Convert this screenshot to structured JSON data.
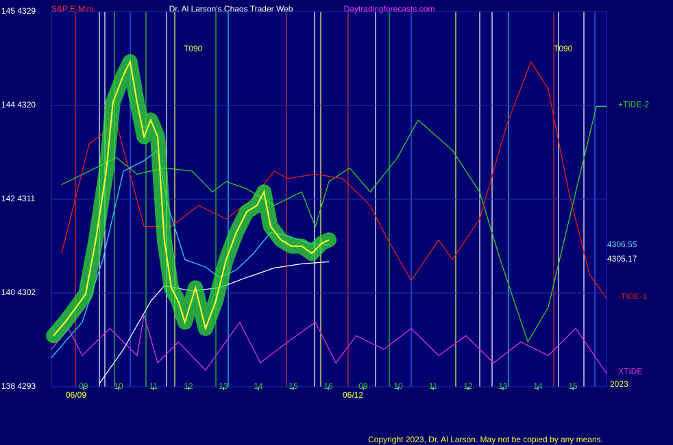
{
  "chart_data": {
    "type": "line",
    "symbol": "S&P E-Mini",
    "title": "Dr. Al Larson's Chaos Trader Web",
    "site": "Daytradingforecasts.com",
    "copyright": "Copyright 2023, Dr. Al Larson. May not be copied by any means.",
    "dates": [
      "06/09",
      "06/12",
      "2023"
    ],
    "annotations": [
      "T090",
      "T090"
    ],
    "price_labels": [
      "4306.55",
      "4305.17"
    ],
    "ylim": [
      4293,
      4329
    ],
    "yticks": [
      {
        "value": 4329,
        "label": "145 4329"
      },
      {
        "value": 4320,
        "label": "144 4320"
      },
      {
        "value": 4311,
        "label": "142 4311"
      },
      {
        "value": 4302,
        "label": "140 4302"
      },
      {
        "value": 4293,
        "label": "138 4293"
      }
    ],
    "xlim": [
      -0.92,
      14.96
    ],
    "xticks": [
      {
        "value": 0,
        "label": "09"
      },
      {
        "value": 1,
        "label": "10"
      },
      {
        "value": 2,
        "label": "11"
      },
      {
        "value": 3,
        "label": "12"
      },
      {
        "value": 4,
        "label": "13"
      },
      {
        "value": 5,
        "label": "14"
      },
      {
        "value": 6,
        "label": "15"
      },
      {
        "value": 7,
        "label": "16"
      },
      {
        "value": 8,
        "label": "09"
      },
      {
        "value": 9,
        "label": "10"
      },
      {
        "value": 10,
        "label": "11"
      },
      {
        "value": 11,
        "label": "12"
      },
      {
        "value": 12,
        "label": "13"
      },
      {
        "value": 13,
        "label": "14"
      },
      {
        "value": 14,
        "label": "15"
      }
    ],
    "grid": true,
    "series": [
      {
        "name": "+TIDE-2",
        "color": "#33cc33",
        "x": [
          -0.63,
          0.16,
          0.94,
          1.53,
          2.31,
          3.1,
          3.69,
          4.08,
          4.67,
          5.45,
          6.24,
          6.63,
          7.02,
          7.61,
          8.2,
          8.98,
          9.57,
          10.55,
          11.33,
          11.92,
          12.71,
          13.29,
          14.08,
          14.67,
          14.96
        ],
        "values": [
          4312.4,
          4313.7,
          4315.0,
          4313.4,
          4314.0,
          4313.7,
          4311.7,
          4312.7,
          4312.0,
          4310.4,
          4311.7,
          4308.4,
          4312.7,
          4314.0,
          4311.7,
          4315.0,
          4318.6,
          4315.7,
          4311.7,
          4305.2,
          4297.3,
          4300.6,
          4311.7,
          4319.9,
          4319.9
        ]
      },
      {
        "name": "-TIDE-1",
        "color": "#dd2211",
        "x": [
          -0.63,
          0.16,
          0.94,
          1.73,
          2.51,
          3.29,
          4.08,
          4.86,
          5.45,
          5.84,
          6.63,
          7.41,
          8.2,
          8.59,
          9.37,
          10.16,
          10.55,
          11.33,
          12.12,
          12.8,
          13.29,
          13.88,
          14.47,
          14.96
        ],
        "values": [
          4305.8,
          4316.3,
          4318.3,
          4308.4,
          4308.4,
          4310.4,
          4309.1,
          4311.1,
          4313.7,
          4313.0,
          4313.4,
          4313.0,
          4310.4,
          4307.8,
          4303.2,
          4307.1,
          4305.2,
          4309.1,
          4318.3,
          4324.2,
          4321.6,
          4311.7,
          4303.8,
          4301.5
        ]
      },
      {
        "name": "XTIDE",
        "color": "#dd33dd",
        "x": [
          -0.92,
          -0.43,
          -0.04,
          0.75,
          1.53,
          1.73,
          2.12,
          2.71,
          3.49,
          4.47,
          5.06,
          5.84,
          6.63,
          7.22,
          7.8,
          8.59,
          9.37,
          10.16,
          10.94,
          11.73,
          12.51,
          13.29,
          14.08,
          14.96
        ],
        "values": [
          4296.6,
          4298.6,
          4296.0,
          4298.6,
          4296.0,
          4299.9,
          4295.3,
          4297.3,
          4294.6,
          4299.2,
          4295.3,
          4297.3,
          4299.2,
          4295.3,
          4297.9,
          4296.6,
          4298.6,
          4296.0,
          4297.9,
          4295.3,
          4297.3,
          4296.0,
          4298.6,
          4294.3
        ]
      },
      {
        "color": "#ffffff",
        "x": [
          0.45,
          1.14,
          1.92,
          2.31,
          3.1,
          3.88,
          4.67,
          5.45,
          6.24,
          7.02
        ],
        "values": [
          4293.3,
          4296.6,
          4301.2,
          4302.7,
          4302.2,
          4302.5,
          4303.5,
          4304.4,
          4304.8,
          4305.0
        ]
      },
      {
        "color": "#33ccff",
        "x": [
          -0.92,
          -0.04,
          0.55,
          1.14,
          1.73,
          2.12,
          2.41,
          2.9,
          3.49,
          3.88,
          4.37,
          4.86,
          5.35,
          5.84,
          6.43,
          7.02
        ],
        "values": [
          4295.8,
          4299.2,
          4305.2,
          4313.7,
          4314.7,
          4315.7,
          4310.4,
          4305.2,
          4304.5,
          4303.5,
          4304.2,
          4305.8,
          4307.8,
          4307.5,
          4306.8,
          4306.6
        ]
      },
      {
        "color": "#ffff33",
        "x": [
          -0.86,
          -0.53,
          -0.24,
          0.06,
          0.35,
          0.65,
          0.84,
          1.14,
          1.33,
          1.53,
          1.73,
          1.92,
          2.12,
          2.31,
          2.51,
          2.71,
          2.9,
          3.2,
          3.49,
          3.78,
          4.08,
          4.37,
          4.67,
          4.96,
          5.16,
          5.35,
          5.65,
          5.94,
          6.24,
          6.53,
          6.82,
          7.02
        ],
        "values": [
          4297.9,
          4299.2,
          4300.5,
          4301.9,
          4307.1,
          4313.7,
          4320.3,
          4322.9,
          4324.2,
          4320.3,
          4317.0,
          4318.6,
          4317.0,
          4307.1,
          4302.5,
          4301.2,
          4299.2,
          4302.5,
          4298.6,
          4301.2,
          4305.2,
          4307.8,
          4309.8,
          4310.4,
          4311.7,
          4308.4,
          4307.1,
          4306.5,
          4306.5,
          4305.8,
          4306.8,
          4307.1
        ]
      }
    ]
  }
}
